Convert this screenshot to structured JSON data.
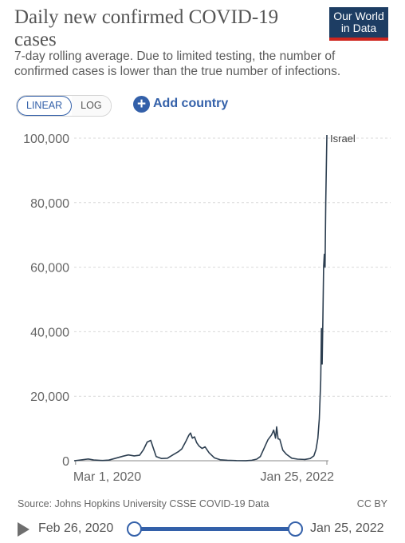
{
  "header": {
    "title": "Daily new confirmed COVID-19 cases",
    "subtitle": "7-day rolling average. Due to limited testing, the number of confirmed cases is lower than the true number of infections.",
    "logo_line1": "Our World",
    "logo_line2": "in Data"
  },
  "controls": {
    "scale_options": [
      "LINEAR",
      "LOG"
    ],
    "active_scale": "LINEAR",
    "add_country_label": "Add country"
  },
  "footer": {
    "source": "Source: Johns Hopkins University CSSE COVID-19 Data",
    "license": "CC BY"
  },
  "timeline": {
    "start_label": "Feb 26, 2020",
    "end_label": "Jan 25, 2022"
  },
  "colors": {
    "accent": "#3360a9",
    "line": "#2c3e50",
    "logo_bg": "#1d3d63",
    "logo_bar": "#ce261e"
  },
  "chart_data": {
    "type": "line",
    "ylim": [
      0,
      100000
    ],
    "y_ticks": [
      0,
      20000,
      40000,
      60000,
      80000,
      100000
    ],
    "y_tick_labels": [
      "0",
      "20,000",
      "40,000",
      "60,000",
      "80,000",
      "100,000"
    ],
    "x_range": [
      "2020-02-26",
      "2022-01-25"
    ],
    "x_ticks": [
      "2020-03-01",
      "2022-01-25"
    ],
    "x_tick_labels": [
      "Mar 1, 2020",
      "Jan 25, 2022"
    ],
    "grid": "horizontal dashed",
    "series": [
      {
        "name": "Israel",
        "x": [
          "2020-02-26",
          "2020-03-15",
          "2020-04-05",
          "2020-04-20",
          "2020-05-15",
          "2020-06-01",
          "2020-06-20",
          "2020-07-10",
          "2020-07-25",
          "2020-08-10",
          "2020-08-25",
          "2020-09-05",
          "2020-09-15",
          "2020-09-25",
          "2020-10-01",
          "2020-10-10",
          "2020-10-25",
          "2020-11-10",
          "2020-11-25",
          "2020-12-10",
          "2020-12-20",
          "2020-12-31",
          "2021-01-08",
          "2021-01-13",
          "2021-01-18",
          "2021-01-24",
          "2021-01-30",
          "2021-02-06",
          "2021-02-14",
          "2021-02-22",
          "2021-03-05",
          "2021-03-20",
          "2021-04-05",
          "2021-04-25",
          "2021-05-20",
          "2021-06-15",
          "2021-07-01",
          "2021-07-15",
          "2021-07-25",
          "2021-08-05",
          "2021-08-15",
          "2021-08-25",
          "2021-08-31",
          "2021-09-05",
          "2021-09-08",
          "2021-09-12",
          "2021-09-17",
          "2021-09-25",
          "2021-10-05",
          "2021-10-20",
          "2021-11-05",
          "2021-11-25",
          "2021-12-10",
          "2021-12-20",
          "2021-12-26",
          "2021-12-31",
          "2022-01-04",
          "2022-01-08",
          "2022-01-10",
          "2022-01-12",
          "2022-01-14",
          "2022-01-16",
          "2022-01-18",
          "2022-01-20",
          "2022-01-22",
          "2022-01-25"
        ],
        "y": [
          0,
          250,
          550,
          250,
          80,
          200,
          800,
          1400,
          1800,
          1500,
          1700,
          3500,
          5800,
          6300,
          4200,
          1300,
          700,
          800,
          1800,
          2800,
          3700,
          6000,
          7900,
          8600,
          7000,
          7400,
          5600,
          4500,
          3800,
          4300,
          2500,
          900,
          300,
          150,
          40,
          20,
          150,
          500,
          1300,
          4000,
          6500,
          8000,
          9500,
          7000,
          10500,
          6800,
          6600,
          3300,
          2000,
          800,
          500,
          400,
          700,
          1500,
          3500,
          7000,
          13000,
          25000,
          41000,
          30000,
          44000,
          60000,
          64000,
          60000,
          80000,
          101000
        ]
      }
    ]
  }
}
